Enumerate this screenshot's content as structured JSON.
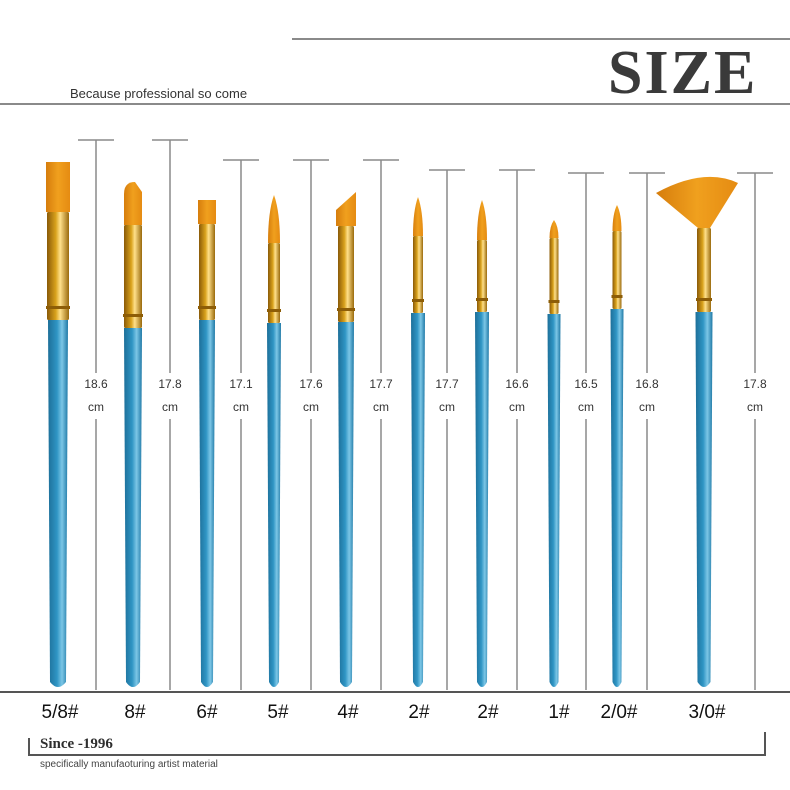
{
  "header": {
    "title": "SIZE",
    "tagline": "Because professional so come"
  },
  "brushes": [
    {
      "size": "5/8#",
      "length": "18.6",
      "unit": "cm",
      "tip": "flat"
    },
    {
      "size": "8#",
      "length": "17.8",
      "unit": "cm",
      "tip": "filbert"
    },
    {
      "size": "6#",
      "length": "17.1",
      "unit": "cm",
      "tip": "flat"
    },
    {
      "size": "5#",
      "length": "17.6",
      "unit": "cm",
      "tip": "round"
    },
    {
      "size": "4#",
      "length": "17.7",
      "unit": "cm",
      "tip": "angled"
    },
    {
      "size": "2#",
      "length": "17.7",
      "unit": "cm",
      "tip": "round"
    },
    {
      "size": "2#",
      "length": "16.6",
      "unit": "cm",
      "tip": "round"
    },
    {
      "size": "1#",
      "length": "16.5",
      "unit": "cm",
      "tip": "round"
    },
    {
      "size": "2/0#",
      "length": "16.8",
      "unit": "cm",
      "tip": "round"
    },
    {
      "size": "3/0#",
      "length": "17.8",
      "unit": "cm",
      "tip": "fan"
    }
  ],
  "footer": {
    "since": "Since -1996",
    "text": "specifically manufaoturing artist material"
  },
  "colors": {
    "handle": "#2f95c4",
    "ferrule": "#d9a21c",
    "bristle": "#f0a01e",
    "lines": "#8a8a8a"
  }
}
